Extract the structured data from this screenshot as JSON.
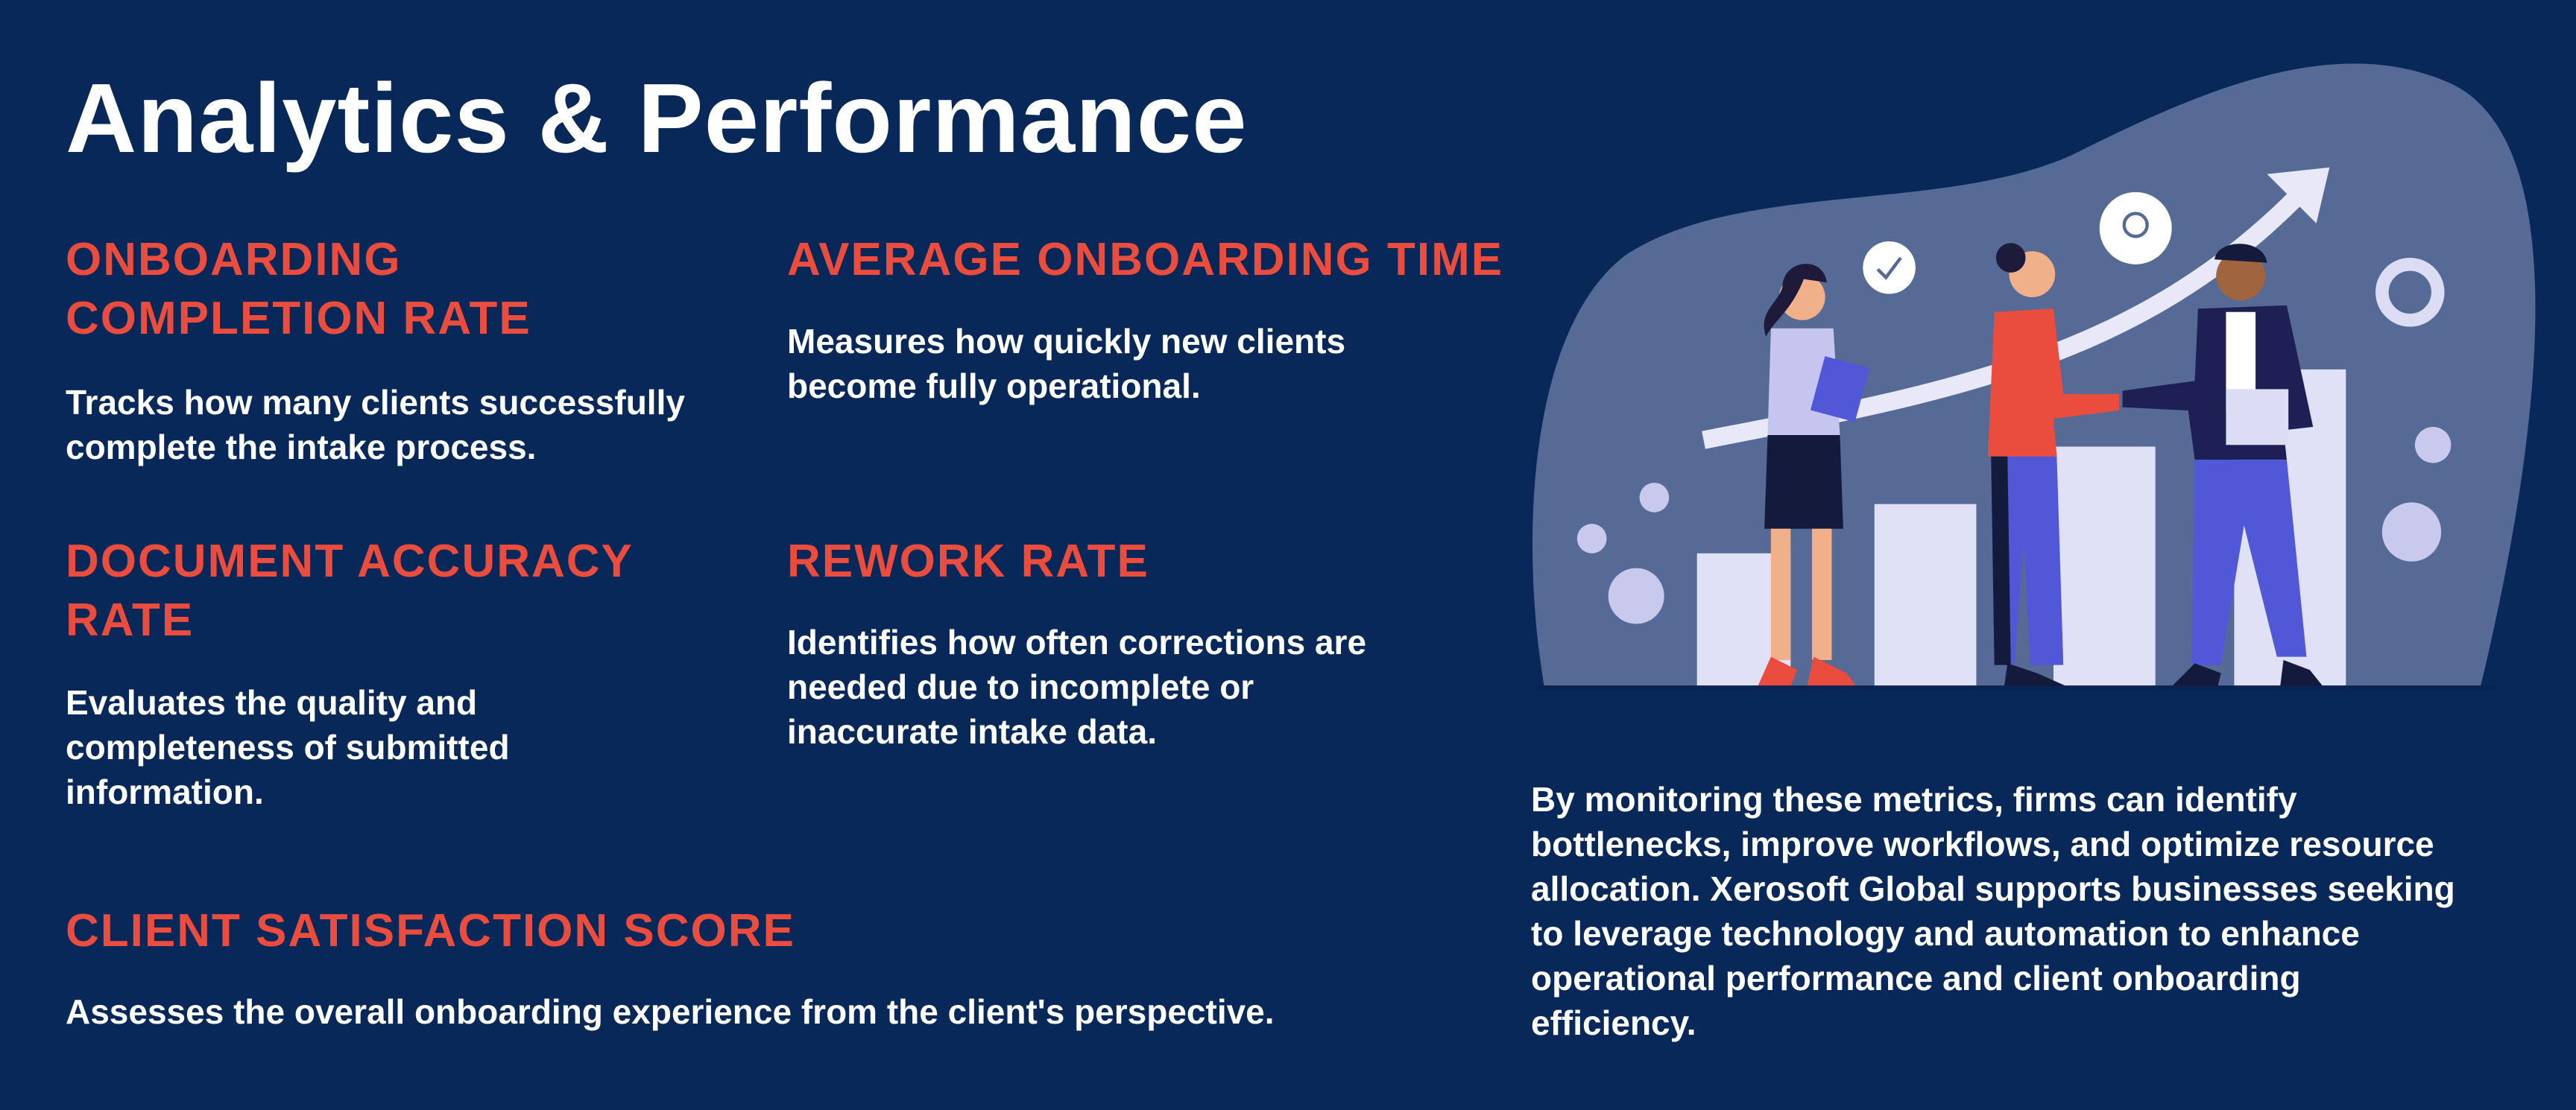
{
  "header": {
    "title": "Analytics & Performance"
  },
  "metrics": [
    {
      "heading": [
        "ONBOARDING",
        "COMPLETION RATE"
      ],
      "description": [
        "Tracks how many clients successfully",
        "complete the intake process."
      ]
    },
    {
      "heading": [
        "AVERAGE ONBOARDING TIME"
      ],
      "description": [
        "Measures how quickly new clients",
        "become fully operational."
      ]
    },
    {
      "heading": [
        "DOCUMENT ACCURACY",
        "RATE"
      ],
      "description": [
        "Evaluates the quality and",
        "completeness of submitted",
        "information."
      ]
    },
    {
      "heading": [
        "REWORK RATE"
      ],
      "description": [
        "Identifies how often corrections are",
        "needed due to incomplete or",
        "inaccurate intake data."
      ]
    },
    {
      "heading": [
        "CLIENT SATISFACTION SCORE"
      ],
      "description": [
        "Assesses the overall onboarding experience from the client's perspective."
      ]
    }
  ],
  "summary": [
    "By monitoring these metrics, firms can identify",
    "bottlenecks, improve workflows, and optimize resource",
    "allocation. Xerosoft Global supports businesses seeking",
    "to leverage technology and automation to enhance",
    "operational performance and client onboarding",
    "efficiency."
  ]
}
